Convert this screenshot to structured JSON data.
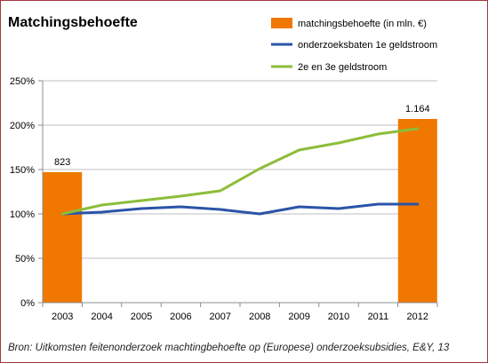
{
  "source_note": "Bron: Uitkomsten feitenonderzoek machtingbehoefte op (Europese) onderzoeksubsidies, E&Y, 13",
  "colors": {
    "bar": "#f07800",
    "line_blue": "#2a54a8",
    "line_green": "#8cbd3a",
    "grid": "#bfbfbf",
    "axis": "#8c8c8c",
    "frame": "#a0393f"
  },
  "chart_data": {
    "type": "bar",
    "title": "Matchingsbehoefte",
    "categories": [
      "2003",
      "2004",
      "2005",
      "2006",
      "2007",
      "2008",
      "2009",
      "2010",
      "2011",
      "2012"
    ],
    "ylim": [
      0,
      250
    ],
    "yticks": [
      0,
      50,
      100,
      150,
      200,
      250
    ],
    "ytick_labels": [
      "0%",
      "50%",
      "100%",
      "150%",
      "200%",
      "250%"
    ],
    "grid": true,
    "legend_position": "top-right",
    "bars": {
      "name": "matchingsbehoefte (in mln. €)",
      "color": "#f07800",
      "points": [
        {
          "category": "2003",
          "value": 147,
          "label": "823"
        },
        {
          "category": "2012",
          "value": 207,
          "label": "1.164"
        }
      ]
    },
    "series": [
      {
        "name": "onderzoeksbaten 1e geldstroom",
        "type": "line",
        "color": "#2a54a8",
        "values": [
          100,
          102,
          106,
          108,
          105,
          100,
          108,
          106,
          111,
          111
        ]
      },
      {
        "name": "2e en 3e geldstroom",
        "type": "line",
        "color": "#8cbd3a",
        "values": [
          100,
          110,
          115,
          120,
          126,
          151,
          172,
          180,
          190,
          196
        ]
      }
    ]
  }
}
